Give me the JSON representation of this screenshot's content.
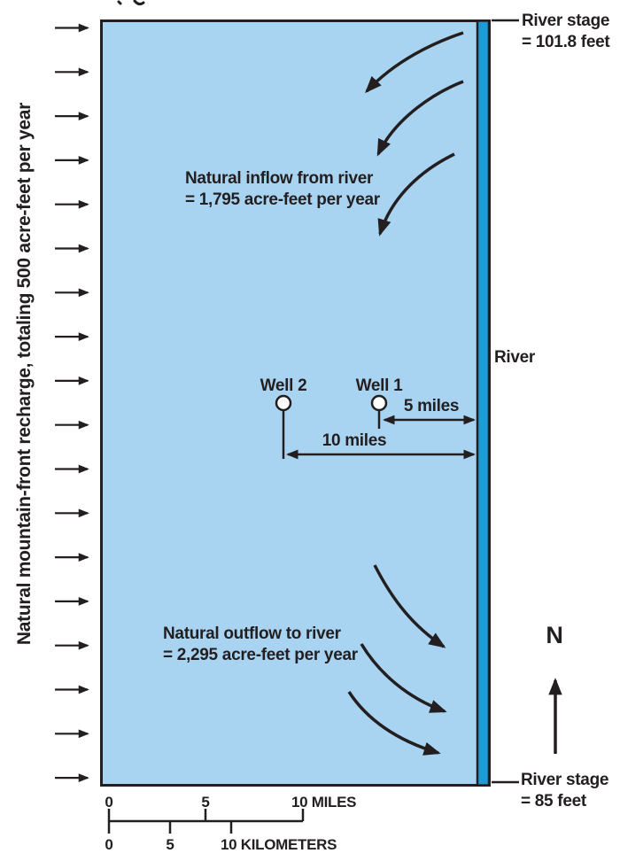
{
  "colors": {
    "aquifer": "#A9D4F1",
    "river": "#1B9CD8",
    "ink": "#231F20",
    "paper": "#FFFFFF"
  },
  "recharge": {
    "label": "Natural mountain-front recharge, totaling 500 acre-feet per year",
    "arrow_count": 18
  },
  "river": {
    "name": "River",
    "stage_top_line1": "River stage",
    "stage_top_line2": "= 101.8 feet",
    "stage_bottom_line1": "River stage",
    "stage_bottom_line2": "= 85 feet"
  },
  "inflow": {
    "line1": "Natural inflow from river",
    "line2": "= 1,795 acre-feet per year"
  },
  "outflow": {
    "line1": "Natural outflow to river",
    "line2": "= 2,295 acre-feet per year"
  },
  "wells": {
    "well1_label": "Well 1",
    "well2_label": "Well 2"
  },
  "dimensions": {
    "well1_to_river": "5 miles",
    "well2_to_river": "10 miles"
  },
  "north_label": "N",
  "scalebar": {
    "miles": {
      "t0": "0",
      "t5": "5",
      "t10": "10 MILES"
    },
    "kilometers": {
      "t0": "0",
      "t5": "5",
      "t10": "10 KILOMETERS"
    }
  }
}
